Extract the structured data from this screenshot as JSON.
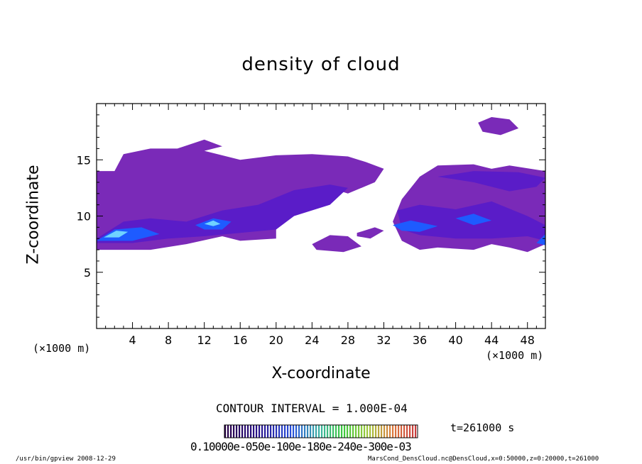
{
  "chart_data": {
    "type": "heatmap",
    "title": "density of cloud",
    "xlabel": "X-coordinate",
    "ylabel": "Z-coordinate",
    "x_unit": "(×1000 m)",
    "y_unit": "(×1000 m)",
    "xlim": [
      0,
      50
    ],
    "ylim": [
      0,
      20
    ],
    "x_ticks": [
      4,
      8,
      12,
      16,
      20,
      24,
      28,
      32,
      36,
      40,
      44,
      48
    ],
    "y_ticks": [
      5,
      10,
      15
    ],
    "contour_interval": "CONTOUR INTERVAL = 1.000E-04",
    "time_label": "t=261000 s",
    "colorbar_labels": "0.10000e-050e-100e-180e-240e-300e-03",
    "colors": {
      "low": "#7a2ab8",
      "mid": "#5a1cc8",
      "blue": "#2a22e0",
      "bright": "#1e5bff",
      "cyan": "#6fd3ff"
    },
    "cloud_regions": [
      {
        "level": 1,
        "points": [
          [
            0,
            14
          ],
          [
            2,
            14
          ],
          [
            3,
            15.5
          ],
          [
            6,
            16
          ],
          [
            9,
            16
          ],
          [
            12,
            16.8
          ],
          [
            14,
            16.2
          ],
          [
            12,
            15.8
          ],
          [
            16,
            15
          ],
          [
            20,
            15.4
          ],
          [
            24,
            15.5
          ],
          [
            28,
            15.3
          ],
          [
            30,
            14.8
          ],
          [
            32,
            14.2
          ],
          [
            31,
            13
          ],
          [
            28,
            12
          ],
          [
            26,
            12.5
          ],
          [
            24,
            11.5
          ],
          [
            22,
            10.5
          ],
          [
            20,
            9.8
          ],
          [
            20,
            8
          ],
          [
            16,
            7.8
          ],
          [
            14,
            8.2
          ],
          [
            10,
            7.5
          ],
          [
            6,
            7
          ],
          [
            0,
            7
          ]
        ]
      },
      {
        "level": 1,
        "points": [
          [
            36,
            13.5
          ],
          [
            38,
            14.5
          ],
          [
            42,
            14.6
          ],
          [
            44,
            14.2
          ],
          [
            46,
            14.5
          ],
          [
            50,
            14
          ],
          [
            50,
            7.5
          ],
          [
            48,
            6.8
          ],
          [
            46,
            7.2
          ],
          [
            44,
            7.5
          ],
          [
            42,
            7
          ],
          [
            38,
            7.2
          ],
          [
            36,
            7
          ],
          [
            34,
            7.8
          ],
          [
            33,
            9.5
          ],
          [
            34,
            11.5
          ],
          [
            35,
            12.5
          ]
        ]
      },
      {
        "level": 1,
        "points": [
          [
            24,
            7.5
          ],
          [
            26,
            8.3
          ],
          [
            28,
            8.2
          ],
          [
            29.5,
            7.3
          ],
          [
            27.5,
            6.8
          ],
          [
            24.5,
            7
          ]
        ]
      },
      {
        "level": 1,
        "points": [
          [
            29,
            8.5
          ],
          [
            31,
            9
          ],
          [
            32,
            8.7
          ],
          [
            30.5,
            8
          ],
          [
            29,
            8.2
          ]
        ]
      },
      {
        "level": 1,
        "points": [
          [
            42.5,
            18.3
          ],
          [
            44,
            18.8
          ],
          [
            46,
            18.6
          ],
          [
            47,
            17.8
          ],
          [
            45,
            17.2
          ],
          [
            43,
            17.5
          ]
        ]
      },
      {
        "level": 2,
        "points": [
          [
            0,
            8
          ],
          [
            3,
            9.5
          ],
          [
            6,
            9.8
          ],
          [
            10,
            9.5
          ],
          [
            14,
            10.5
          ],
          [
            18,
            11
          ],
          [
            22,
            12.3
          ],
          [
            26,
            12.8
          ],
          [
            28,
            12.5
          ],
          [
            26,
            11
          ],
          [
            22,
            10
          ],
          [
            20,
            8.8
          ],
          [
            16,
            8.5
          ],
          [
            12,
            8.2
          ],
          [
            8,
            8
          ],
          [
            4,
            7.6
          ],
          [
            0,
            7.6
          ]
        ]
      },
      {
        "level": 2,
        "points": [
          [
            33.5,
            10.5
          ],
          [
            36,
            11
          ],
          [
            40,
            10.6
          ],
          [
            44,
            11.3
          ],
          [
            48,
            10
          ],
          [
            50,
            9.2
          ],
          [
            50,
            7.8
          ],
          [
            48,
            8.2
          ],
          [
            44,
            8
          ],
          [
            40,
            8
          ],
          [
            36,
            8.3
          ],
          [
            34,
            8.8
          ]
        ]
      },
      {
        "level": 2,
        "points": [
          [
            38,
            13.5
          ],
          [
            42,
            13
          ],
          [
            46,
            12.2
          ],
          [
            49,
            12.6
          ],
          [
            50,
            13.4
          ],
          [
            47,
            13.9
          ],
          [
            42,
            14
          ]
        ]
      },
      {
        "level": 3,
        "points": [
          [
            0,
            7.8
          ],
          [
            2,
            8.8
          ],
          [
            5,
            9
          ],
          [
            7,
            8.4
          ],
          [
            4,
            7.8
          ]
        ]
      },
      {
        "level": 3,
        "points": [
          [
            11,
            9.2
          ],
          [
            13,
            9.8
          ],
          [
            15,
            9.5
          ],
          [
            14,
            8.8
          ],
          [
            12,
            8.8
          ]
        ]
      },
      {
        "level": 3,
        "points": [
          [
            33,
            9.2
          ],
          [
            35,
            9.6
          ],
          [
            38,
            9.1
          ],
          [
            36,
            8.6
          ],
          [
            34,
            8.7
          ]
        ]
      },
      {
        "level": 3,
        "points": [
          [
            40,
            9.8
          ],
          [
            42,
            10.2
          ],
          [
            44,
            9.6
          ],
          [
            42,
            9.2
          ]
        ]
      },
      {
        "level": 3,
        "points": [
          [
            49,
            7.6
          ],
          [
            50,
            8.4
          ],
          [
            50,
            7.4
          ]
        ]
      },
      {
        "level": 4,
        "points": [
          [
            0.8,
            8.1
          ],
          [
            2.2,
            8.7
          ],
          [
            3.5,
            8.6
          ],
          [
            2.5,
            8.1
          ]
        ]
      },
      {
        "level": 4,
        "points": [
          [
            12,
            9.3
          ],
          [
            13,
            9.6
          ],
          [
            13.8,
            9.3
          ],
          [
            13,
            9.1
          ]
        ]
      }
    ]
  },
  "footer": {
    "left": "/usr/bin/gpview   2008-12-29",
    "right": "MarsCond_DensCloud.nc@DensCloud,x=0:50000,z=0:20000,t=261000"
  }
}
